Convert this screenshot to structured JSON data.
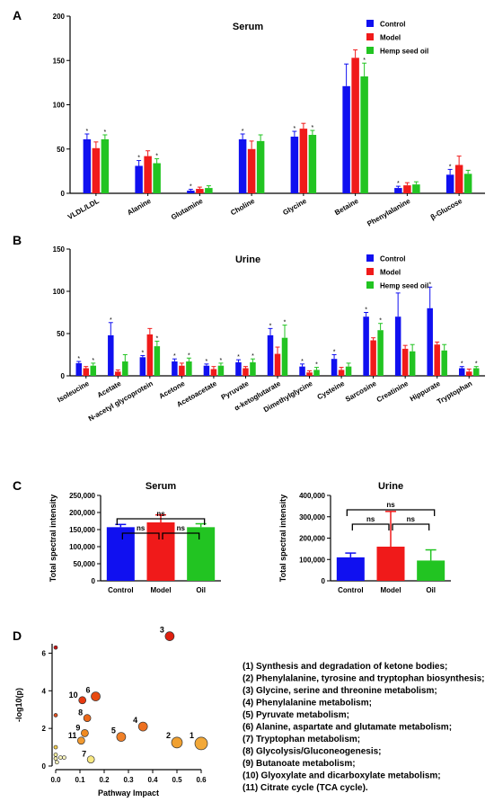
{
  "colors": {
    "control": "#1010f0",
    "model": "#f01a1a",
    "oil": "#22c422"
  },
  "panel_labels": [
    "A",
    "B",
    "C",
    "D"
  ],
  "chart_data": [
    {
      "id": "A",
      "type": "bar",
      "title": "Serum",
      "ylim": [
        0,
        200
      ],
      "yticks": [
        "0",
        "50",
        "100",
        "150",
        "200"
      ],
      "legend": [
        "Control",
        "Model",
        "Hemp seed oil"
      ],
      "legend_position": "top-right",
      "categories": [
        "VLDL/LDL",
        "Alanine",
        "Glutamine",
        "Choline",
        "Glycine",
        "Betaine",
        "Phenylalanine",
        "β-Glucose"
      ],
      "series": [
        {
          "name": "Control",
          "values": [
            61,
            31,
            3,
            61,
            64,
            121,
            6,
            21
          ],
          "errors": [
            6,
            6,
            1.5,
            6,
            6,
            25,
            2,
            6
          ]
        },
        {
          "name": "Model",
          "values": [
            51,
            42,
            5,
            50,
            73,
            153,
            9,
            32
          ],
          "errors": [
            7,
            6,
            2,
            9,
            6,
            9,
            3,
            10
          ]
        },
        {
          "name": "Hemp seed oil",
          "values": [
            61,
            34,
            6,
            59,
            66,
            132,
            10,
            22
          ],
          "errors": [
            5,
            5,
            2.5,
            7,
            5,
            15,
            3,
            4
          ]
        }
      ],
      "significance": [
        [
          "*",
          "",
          "*"
        ],
        [
          "*",
          "",
          "*"
        ],
        [
          "*",
          "",
          ""
        ],
        [
          "*",
          "",
          ""
        ],
        [
          "*",
          "",
          "*"
        ],
        [
          "",
          "",
          "*"
        ],
        [
          "*",
          "",
          ""
        ],
        [
          "*",
          "",
          ""
        ]
      ]
    },
    {
      "id": "B",
      "type": "bar",
      "title": "Urine",
      "ylim": [
        0,
        150
      ],
      "yticks": [
        "0",
        "50",
        "100",
        "150"
      ],
      "legend": [
        "Control",
        "Model",
        "Hemp seed oil"
      ],
      "legend_position": "top-right",
      "categories": [
        "Isoleucine",
        "Acetate",
        "N-acetyl glycoprotein",
        "Acetone",
        "Acetoacetate",
        "Pyruvate",
        "α-ketoglutarate",
        "Dimethylglycine",
        "Cysteine",
        "Sarcosine",
        "Creatinine",
        "Hippurate",
        "Tryptophan"
      ],
      "series": [
        {
          "name": "Control",
          "values": [
            15,
            48,
            22,
            17,
            12,
            16,
            48,
            11,
            20,
            70,
            70,
            80,
            9
          ],
          "errors": [
            2,
            15,
            2,
            3,
            2,
            3,
            8,
            3,
            5,
            5,
            28,
            25,
            2
          ]
        },
        {
          "name": "Model",
          "values": [
            9,
            5,
            49,
            12,
            8,
            9,
            26,
            4,
            7,
            42,
            32,
            37,
            5
          ],
          "errors": [
            2,
            2,
            7,
            3,
            3,
            2,
            8,
            2,
            3,
            3,
            4,
            3,
            3
          ]
        },
        {
          "name": "Hemp seed oil",
          "values": [
            12,
            17,
            35,
            17,
            12,
            16,
            45,
            7,
            11,
            54,
            29,
            30,
            9
          ],
          "errors": [
            3,
            8,
            6,
            4,
            3,
            4,
            15,
            3,
            4,
            8,
            8,
            7,
            2
          ]
        }
      ],
      "significance": [
        [
          "*",
          "",
          "*"
        ],
        [
          "*",
          "",
          ""
        ],
        [
          "*",
          "",
          "*"
        ],
        [
          "*",
          "",
          "*"
        ],
        [
          "*",
          "",
          "*"
        ],
        [
          "*",
          "",
          "*"
        ],
        [
          "*",
          "",
          "*"
        ],
        [
          "*",
          "",
          "*"
        ],
        [
          "*",
          "",
          ""
        ],
        [
          "*",
          "",
          "*"
        ],
        [
          "*",
          "",
          ""
        ],
        [
          "*",
          "",
          ""
        ],
        [
          "*",
          "",
          "*"
        ]
      ]
    },
    {
      "id": "C1",
      "type": "bar",
      "title": "Serum",
      "ylabel": "Total spectral intensity",
      "ylim": [
        0,
        250000
      ],
      "yticks": [
        "0",
        "50,000",
        "100,000",
        "150,000",
        "200,000",
        "250,000"
      ],
      "categories": [
        "Control",
        "Model",
        "Oil"
      ],
      "values": [
        157000,
        171000,
        157000
      ],
      "errors": [
        8000,
        22000,
        10000
      ],
      "brackets": [
        {
          "from": 0,
          "to": 1,
          "label": "ns"
        },
        {
          "from": 1,
          "to": 2,
          "label": "ns"
        },
        {
          "from": 0,
          "to": 2,
          "label": "ns"
        }
      ]
    },
    {
      "id": "C2",
      "type": "bar",
      "title": "Urine",
      "ylabel": "Total spectral intensity",
      "ylim": [
        0,
        400000
      ],
      "yticks": [
        "0",
        "100,000",
        "200,000",
        "300,000",
        "400,000"
      ],
      "categories": [
        "Control",
        "Model",
        "Oil"
      ],
      "values": [
        110000,
        160000,
        95000
      ],
      "errors": [
        20000,
        165000,
        50000
      ],
      "brackets": [
        {
          "from": 0,
          "to": 1,
          "label": "ns"
        },
        {
          "from": 1,
          "to": 2,
          "label": "ns"
        },
        {
          "from": 0,
          "to": 2,
          "label": "ns"
        }
      ]
    },
    {
      "id": "D",
      "type": "scatter",
      "xlabel": "Pathway Impact",
      "ylabel": "-log10(p)",
      "xlim": [
        0,
        0.6
      ],
      "ylim": [
        0,
        6.5
      ],
      "xticks": [
        "0.0",
        "0.1",
        "0.2",
        "0.3",
        "0.4",
        "0.5",
        "0.6"
      ],
      "yticks": [
        "0",
        "2",
        "4",
        "6"
      ],
      "points": [
        {
          "label": "3",
          "x": 0.47,
          "y": 6.9,
          "color": "#e02010",
          "size": 5
        },
        {
          "label": "",
          "x": 0.0,
          "y": 6.3,
          "color": "#cc1010",
          "size": 2
        },
        {
          "label": "10",
          "x": 0.11,
          "y": 3.5,
          "color": "#e83a10",
          "size": 4
        },
        {
          "label": "6",
          "x": 0.165,
          "y": 3.7,
          "color": "#e84a10",
          "size": 5
        },
        {
          "label": "",
          "x": 0.0,
          "y": 2.7,
          "color": "#e05020",
          "size": 2
        },
        {
          "label": "8",
          "x": 0.13,
          "y": 2.55,
          "color": "#ec6818",
          "size": 4
        },
        {
          "label": "4",
          "x": 0.36,
          "y": 2.1,
          "color": "#ee7020",
          "size": 5
        },
        {
          "label": "5",
          "x": 0.27,
          "y": 1.55,
          "color": "#f08028",
          "size": 5
        },
        {
          "label": "9",
          "x": 0.12,
          "y": 1.75,
          "color": "#f08a20",
          "size": 4
        },
        {
          "label": "11",
          "x": 0.105,
          "y": 1.35,
          "color": "#f29a30",
          "size": 4
        },
        {
          "label": "2",
          "x": 0.5,
          "y": 1.25,
          "color": "#f0a030",
          "size": 6
        },
        {
          "label": "1",
          "x": 0.6,
          "y": 1.2,
          "color": "#f2a838",
          "size": 7
        },
        {
          "label": "7",
          "x": 0.145,
          "y": 0.35,
          "color": "#f8e880",
          "size": 4
        },
        {
          "label": "",
          "x": 0.0,
          "y": 1.0,
          "color": "#f8d050",
          "size": 2
        },
        {
          "label": "",
          "x": 0.0,
          "y": 0.6,
          "color": "#faf0a0",
          "size": 2
        },
        {
          "label": "",
          "x": 0.0,
          "y": 0.4,
          "color": "#fbf4b0",
          "size": 2
        },
        {
          "label": "",
          "x": 0.005,
          "y": 0.2,
          "color": "#fcf6c0",
          "size": 2
        },
        {
          "label": "",
          "x": 0.02,
          "y": 0.45,
          "color": "#fcf6c0",
          "size": 2
        },
        {
          "label": "",
          "x": 0.035,
          "y": 0.45,
          "color": "#fcf6c0",
          "size": 2
        }
      ],
      "pathways": [
        "(1) Synthesis and degradation of ketone bodies;",
        "(2) Phenylalanine, tyrosine and tryptophan biosynthesis;",
        "(3) Glycine, serine and threonine metabolism;",
        "(4) Phenylalanine metabolism;",
        "(5) Pyruvate metabolism;",
        "(6) Alanine, aspartate and glutamate metabolism;",
        "(7) Tryptophan metabolism;",
        "(8) Glycolysis/Gluconeogenesis;",
        "(9) Butanoate metabolism;",
        "(10) Glyoxylate and dicarboxylate metabolism;",
        "(11) Citrate cycle (TCA cycle)."
      ]
    }
  ]
}
